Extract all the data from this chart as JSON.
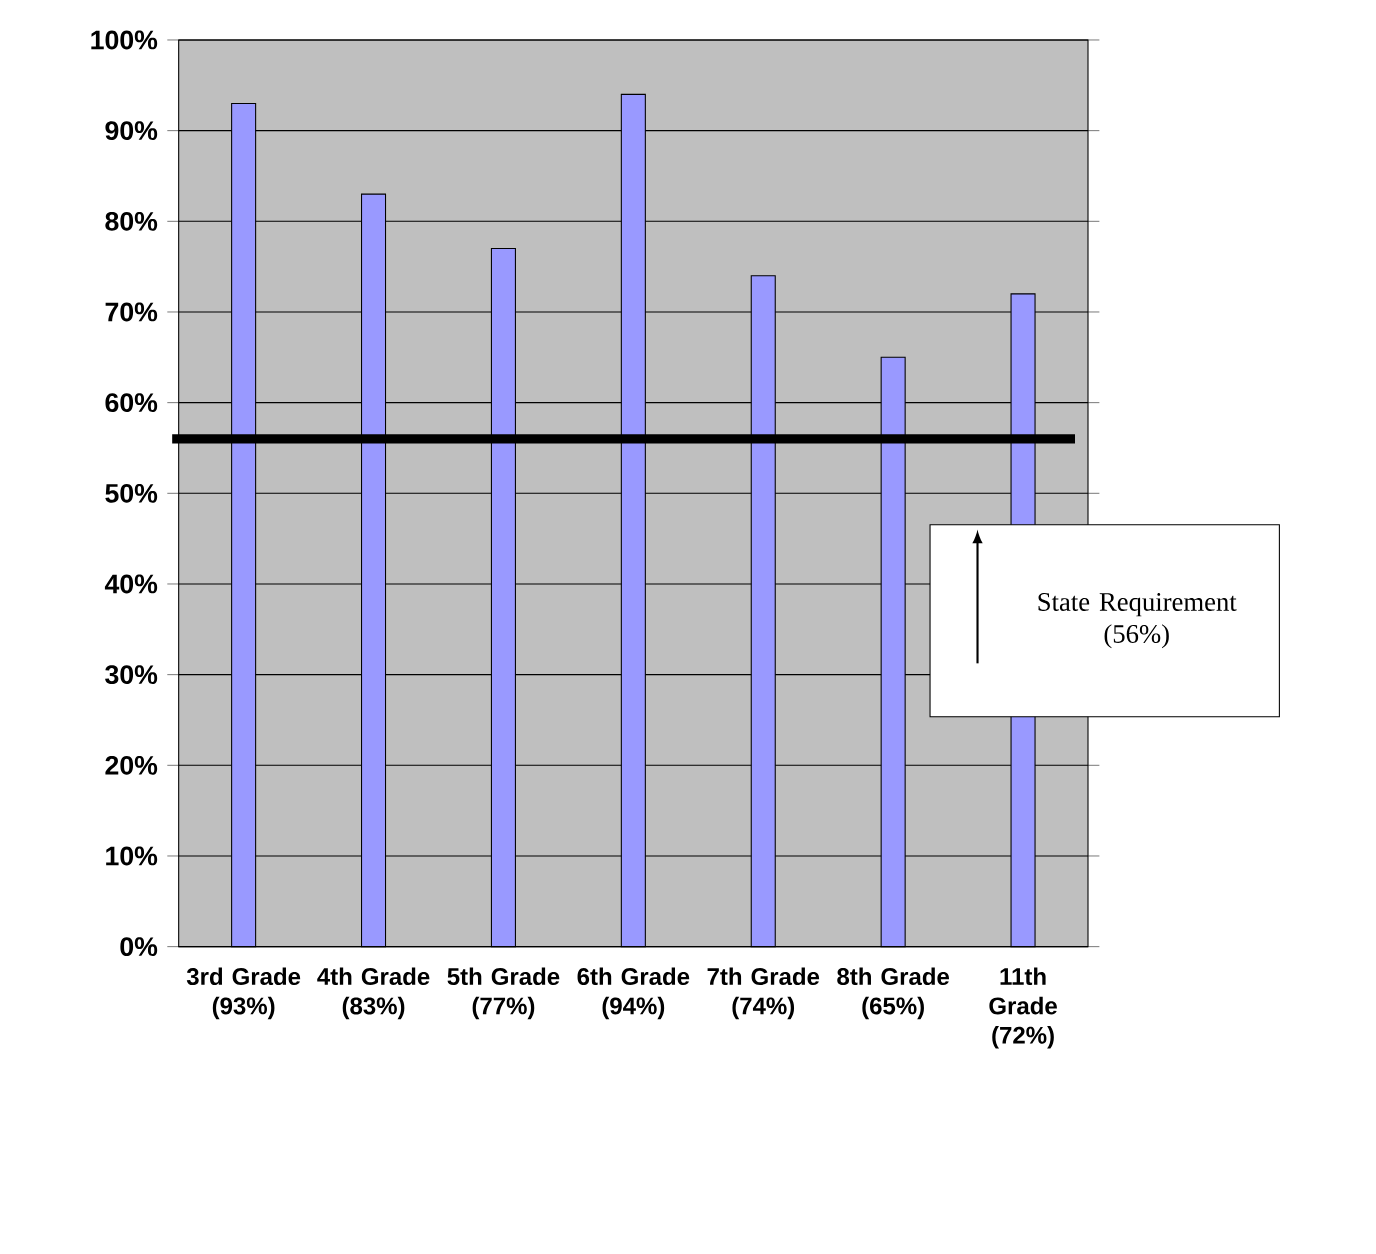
{
  "chart_data": {
    "type": "bar",
    "categories": [
      "3rd Grade (93%)",
      "4th Grade (83%)",
      "5th Grade (77%)",
      "6th Grade (94%)",
      "7th Grade (74%)",
      "8th Grade (65%)",
      "11th Grade (72%)"
    ],
    "values": [
      93,
      83,
      77,
      94,
      74,
      65,
      72
    ],
    "color": "#9999ff",
    "ylim": [
      0,
      100
    ],
    "yticks": [
      {
        "value": 0,
        "label": "0%"
      },
      {
        "value": 10,
        "label": "10%"
      },
      {
        "value": 20,
        "label": "20%"
      },
      {
        "value": 30,
        "label": "30%"
      },
      {
        "value": 40,
        "label": "40%"
      },
      {
        "value": 50,
        "label": "50%"
      },
      {
        "value": 60,
        "label": "60%"
      },
      {
        "value": 70,
        "label": "70%"
      },
      {
        "value": 80,
        "label": "80%"
      },
      {
        "value": 90,
        "label": "90%"
      },
      {
        "value": 100,
        "label": "100%"
      }
    ],
    "grid": "y",
    "ref_lines": [
      {
        "axis": "y",
        "value": 56,
        "label": "State Requirement (56%)",
        "color": "#000000"
      }
    ]
  }
}
